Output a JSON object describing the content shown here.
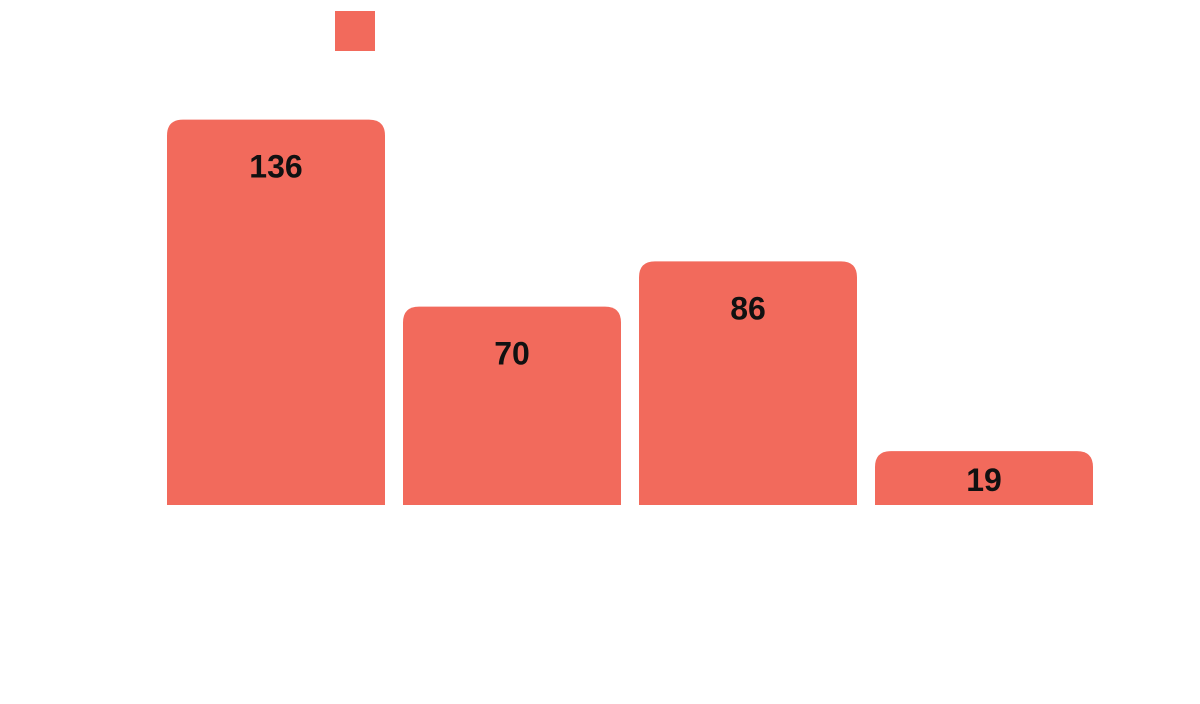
{
  "chart_data": {
    "type": "bar",
    "categories": [
      "",
      "",
      "",
      ""
    ],
    "values": [
      136,
      70,
      86,
      19
    ],
    "ylim": [
      0,
      150
    ],
    "grid": false,
    "legend": "top-center",
    "series": [
      {
        "values": [
          136,
          70,
          86,
          19
        ],
        "color": "#f26a5c"
      }
    ],
    "data_labels": [
      "136",
      "70",
      "86",
      "19"
    ]
  }
}
